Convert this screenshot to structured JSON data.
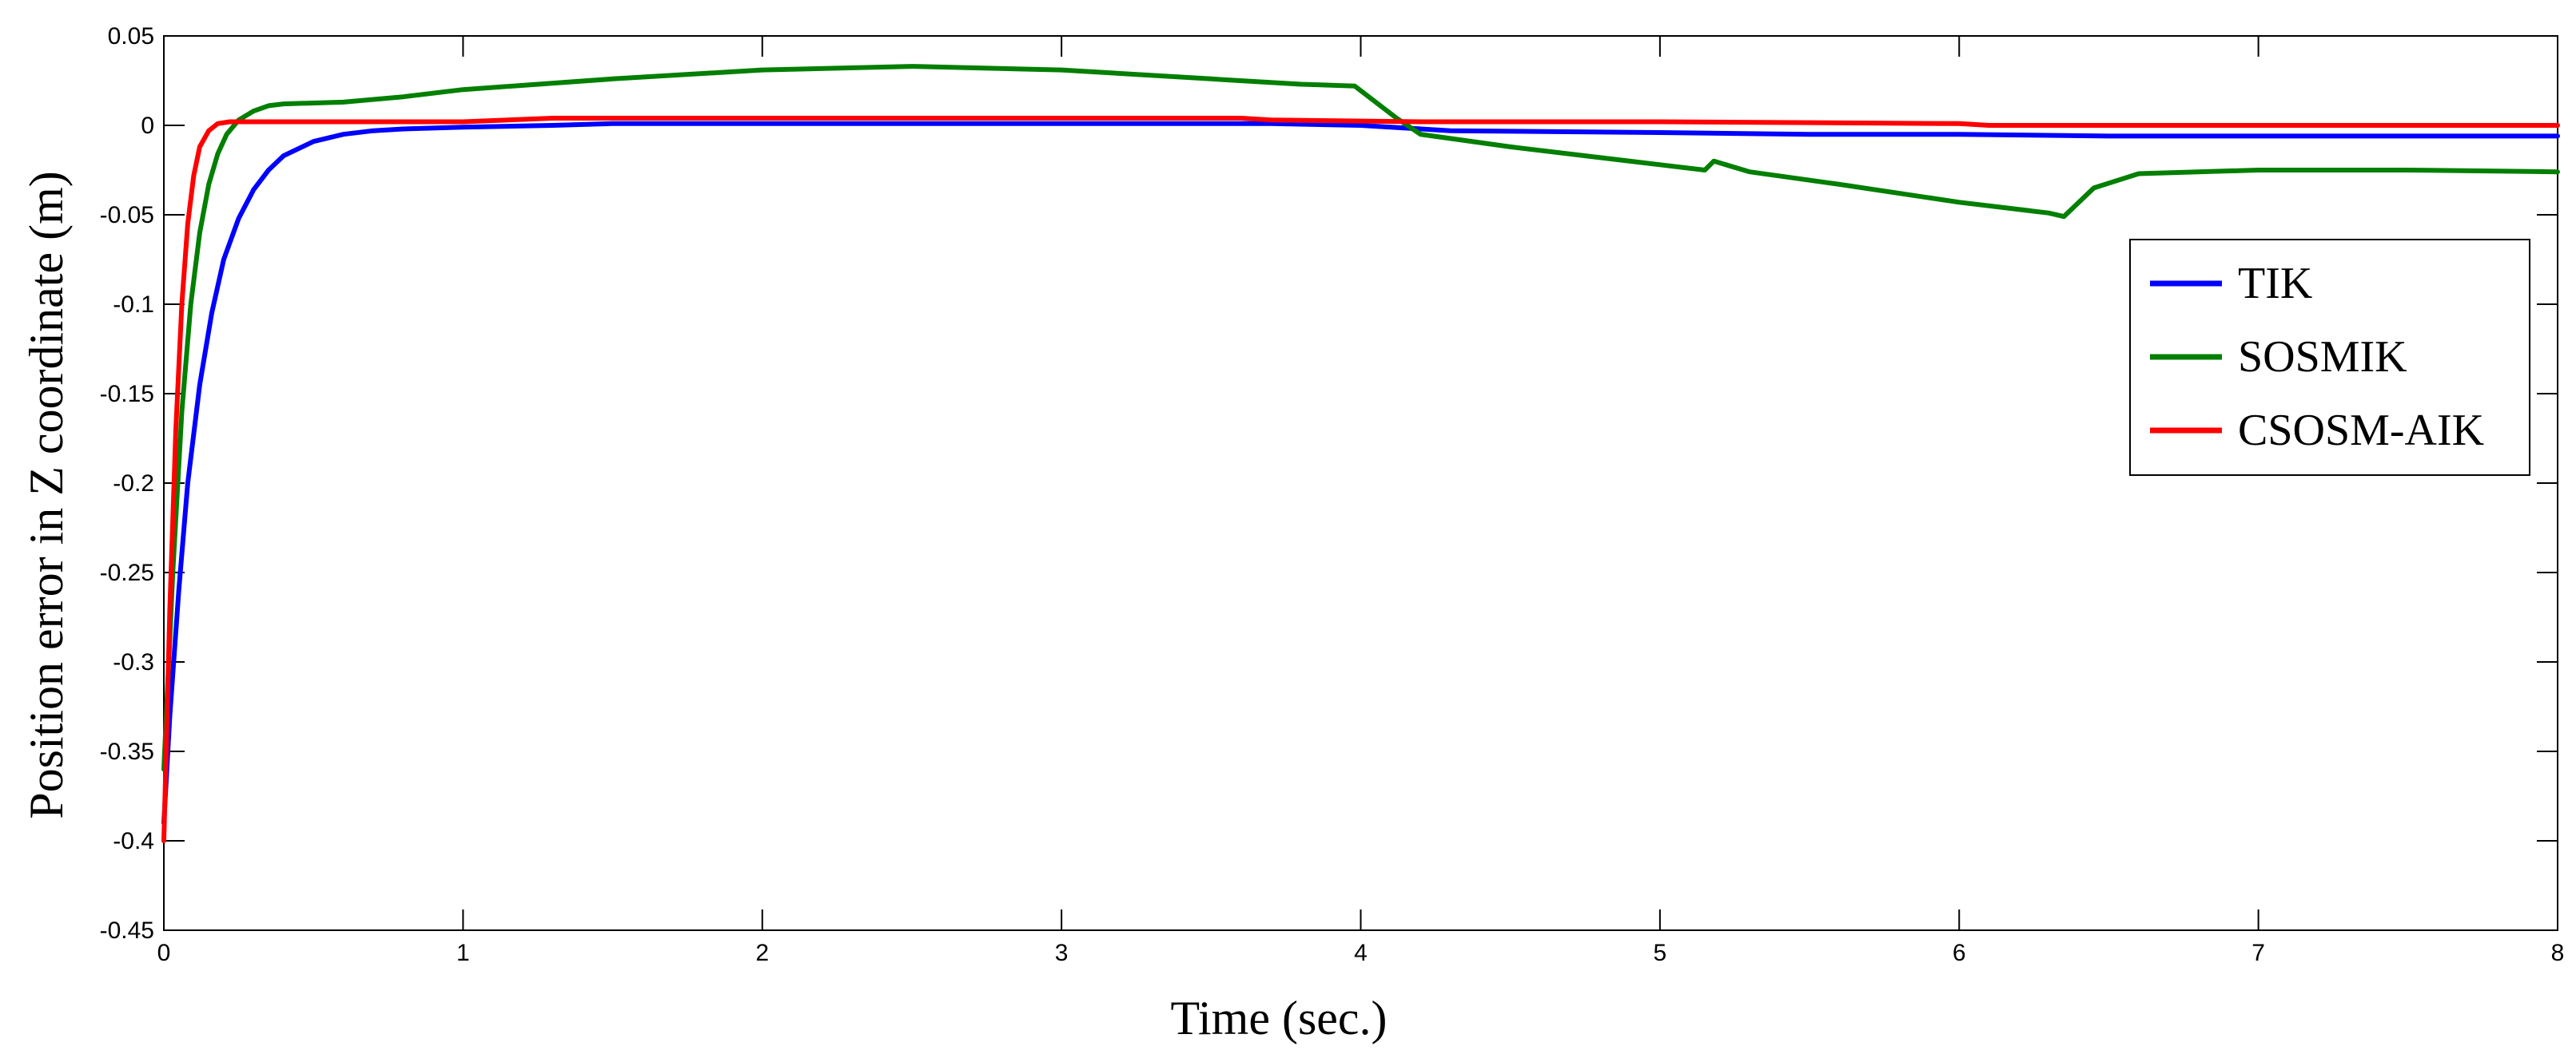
{
  "chart_data": {
    "type": "line",
    "xlabel": "Time (sec.)",
    "ylabel": "Position error in Z coordinate (m)",
    "xlim": [
      0,
      8
    ],
    "ylim": [
      -0.45,
      0.05
    ],
    "xticks": [
      "0",
      "1",
      "2",
      "3",
      "4",
      "5",
      "6",
      "7",
      "8"
    ],
    "yticks": [
      "0.05",
      "0",
      "-0.05",
      "-0.1",
      "-0.15",
      "-0.2",
      "-0.25",
      "-0.3",
      "-0.35",
      "-0.4",
      "-0.45"
    ],
    "grid": false,
    "legend_position": "right",
    "series": [
      {
        "name": "TIK",
        "color": "#0000ff",
        "x": [
          0,
          0.02,
          0.05,
          0.08,
          0.12,
          0.16,
          0.2,
          0.25,
          0.3,
          0.35,
          0.4,
          0.5,
          0.6,
          0.7,
          0.8,
          1.0,
          1.3,
          1.5,
          2.0,
          3.0,
          3.7,
          4.0,
          4.3,
          5.0,
          5.5,
          6.0,
          6.5,
          7.0,
          8.0
        ],
        "y": [
          -0.39,
          -0.33,
          -0.26,
          -0.2,
          -0.145,
          -0.105,
          -0.075,
          -0.052,
          -0.036,
          -0.025,
          -0.017,
          -0.009,
          -0.005,
          -0.003,
          -0.002,
          -0.001,
          0.0,
          0.001,
          0.001,
          0.001,
          0.001,
          0.0,
          -0.003,
          -0.004,
          -0.005,
          -0.005,
          -0.006,
          -0.006,
          -0.006
        ]
      },
      {
        "name": "SOSMIK",
        "color": "#007f00",
        "x": [
          0,
          0.03,
          0.06,
          0.09,
          0.12,
          0.15,
          0.18,
          0.21,
          0.25,
          0.3,
          0.35,
          0.4,
          0.6,
          0.8,
          1.0,
          1.5,
          2.0,
          2.5,
          3.0,
          3.5,
          3.8,
          3.98,
          4.05,
          4.12,
          4.2,
          4.5,
          5.0,
          5.15,
          5.18,
          5.3,
          5.6,
          6.0,
          6.3,
          6.35,
          6.45,
          6.6,
          7.0,
          7.5,
          8.0
        ],
        "y": [
          -0.36,
          -0.25,
          -0.16,
          -0.1,
          -0.06,
          -0.033,
          -0.016,
          -0.005,
          0.003,
          0.008,
          0.011,
          0.012,
          0.013,
          0.016,
          0.02,
          0.026,
          0.031,
          0.033,
          0.031,
          0.026,
          0.023,
          0.022,
          0.013,
          0.004,
          -0.005,
          -0.012,
          -0.022,
          -0.025,
          -0.02,
          -0.026,
          -0.033,
          -0.043,
          -0.049,
          -0.051,
          -0.035,
          -0.027,
          -0.025,
          -0.025,
          -0.026
        ]
      },
      {
        "name": "CSOSM-AIK",
        "color": "#ff0000",
        "x": [
          0,
          0.02,
          0.04,
          0.06,
          0.08,
          0.1,
          0.12,
          0.15,
          0.18,
          0.22,
          0.3,
          1.0,
          1.3,
          2.0,
          3.0,
          3.6,
          3.7,
          4.2,
          5.0,
          6.0,
          6.1,
          7.0,
          8.0
        ],
        "y": [
          -0.4,
          -0.27,
          -0.17,
          -0.1,
          -0.055,
          -0.028,
          -0.012,
          -0.003,
          0.001,
          0.002,
          0.002,
          0.002,
          0.004,
          0.004,
          0.004,
          0.004,
          0.003,
          0.002,
          0.002,
          0.001,
          0.0,
          0.0,
          0.0
        ]
      }
    ]
  }
}
